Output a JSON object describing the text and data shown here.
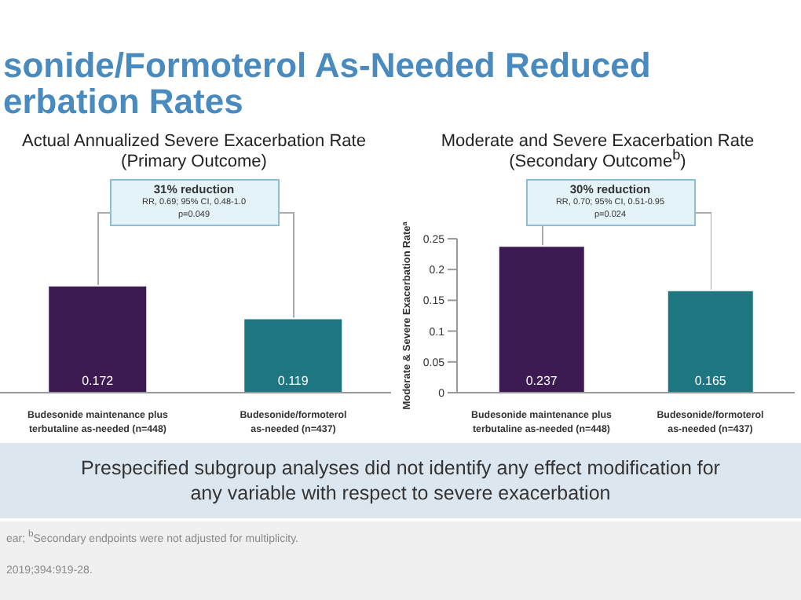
{
  "chart_data": [
    {
      "type": "bar",
      "title": "Actual Annualized Severe Exacerbation Rate",
      "subtitle": "(Primary Outcome)",
      "categories": [
        "Budesonide maintenance plus terbutaline as-needed (n=448)",
        "Budesonide/formoterol as-needed (n=437)"
      ],
      "values": [
        0.172,
        0.119
      ],
      "colors": [
        "#3d1a52",
        "#1e7680"
      ],
      "data_labels": true,
      "tick_labels": "x",
      "annotations": [
        "sonide/Formoterol As-Needed Reduced",
        "erbation Rates",
        "31% reduction",
        "RR, 0.69; 95% CI, 0.48-1.0",
        "p=0.049"
      ]
    },
    {
      "type": "bar",
      "title": "Moderate and Severe Exacerbation Rate",
      "subtitle": "(Secondary Outcome$^{b}$)",
      "ylabel": "Moderate & Severe Exacerbation Rate$^{a}$",
      "categories": [
        "Budesonide maintenance plus terbutaline as-needed (n=448)",
        "Budesonide/formoterol as-needed (n=437)"
      ],
      "values": [
        0.237,
        0.165
      ],
      "colors": [
        "#3d1a52",
        "#1e7680"
      ],
      "data_labels": true,
      "ylim": [
        0,
        0.25
      ],
      "yticks": [
        0,
        0.05,
        0.1,
        0.15,
        0.2,
        0.25
      ],
      "annotations": [
        "30% reduction",
        "RR, 0.70; 95% CI, 0.51-0.95",
        "p=0.024",
        "Prespecified subgroup analyses did not identify any effect modification for any variable with respect to severe exacerbation",
        "ear; $^{b}$Secondary endpoints were not adjusted for multiplicity.",
        "2019;394:919-28."
      ]
    }
  ]
}
